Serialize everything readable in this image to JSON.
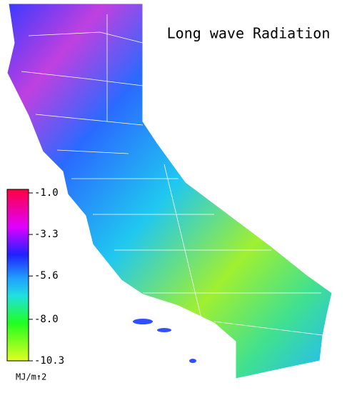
{
  "title": "Long wave Radiation",
  "colorbar": {
    "ticks": [
      {
        "value": -1.0,
        "label": "-1.0"
      },
      -3.3,
      -5.6,
      {
        "value": -8.0,
        "label": "-8.0"
      },
      -10.3
    ],
    "unit": "MJ/m↑2"
  }
}
